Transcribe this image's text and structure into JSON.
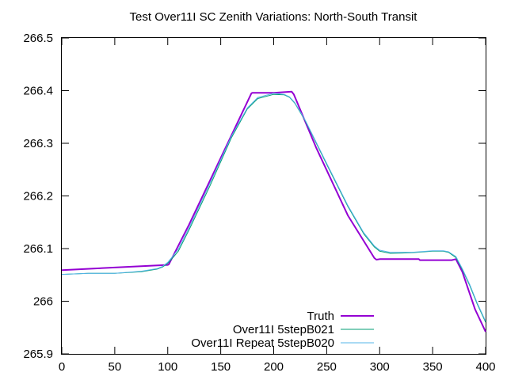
{
  "chart_data": {
    "type": "line",
    "title": "Test Over11I SC Zenith Variations: North-South Transit",
    "xlabel": "",
    "ylabel": "",
    "xlim": [
      0,
      400
    ],
    "ylim": [
      265.9,
      266.5
    ],
    "xticks": [
      0,
      50,
      100,
      150,
      200,
      250,
      300,
      350,
      400
    ],
    "xtick_labels": [
      "0",
      "50",
      "100",
      "150",
      "200",
      "250",
      "300",
      "350",
      "400"
    ],
    "yticks": [
      265.9,
      266.0,
      266.1,
      266.2,
      266.3,
      266.4,
      266.5
    ],
    "ytick_labels": [
      "265.9",
      "266",
      "266.1",
      "266.2",
      "266.3",
      "266.4",
      "266.5"
    ],
    "grid": false,
    "legend_position": "bottom-right",
    "series": [
      {
        "name": "Truth",
        "color": "#9400d3",
        "x": [
          0,
          50,
          100,
          101,
          120,
          150,
          179,
          180,
          200,
          217,
          219,
          240,
          270,
          295,
          297,
          300,
          337,
          338,
          368,
          372,
          378,
          390,
          400
        ],
        "y": [
          266.059,
          266.064,
          266.069,
          266.07,
          266.145,
          266.272,
          266.395,
          266.396,
          266.396,
          266.398,
          266.393,
          266.292,
          266.163,
          266.082,
          266.079,
          266.08,
          266.08,
          266.078,
          266.078,
          266.08,
          266.056,
          265.985,
          265.942
        ]
      },
      {
        "name": "Over11I 5stepB021",
        "color": "#009e73",
        "x": [
          0,
          25,
          50,
          75,
          90,
          95,
          100,
          105,
          110,
          120,
          140,
          160,
          175,
          185,
          200,
          210,
          215,
          220,
          230,
          250,
          270,
          285,
          295,
          300,
          310,
          330,
          350,
          360,
          365,
          372,
          378,
          385,
          392,
          400
        ],
        "y": [
          266.051,
          266.053,
          266.053,
          266.056,
          266.061,
          266.065,
          266.072,
          266.083,
          266.095,
          266.135,
          266.22,
          266.31,
          266.365,
          266.385,
          266.393,
          266.392,
          266.387,
          266.376,
          266.342,
          266.26,
          266.18,
          266.128,
          266.103,
          266.095,
          266.091,
          266.092,
          266.095,
          266.095,
          266.093,
          266.083,
          266.06,
          266.03,
          265.995,
          265.96
        ]
      },
      {
        "name": "Over11I Repeat 5stepB020",
        "color": "#56b4e9",
        "x": [
          0,
          25,
          50,
          75,
          90,
          95,
          100,
          105,
          110,
          120,
          140,
          160,
          175,
          185,
          200,
          210,
          215,
          220,
          230,
          250,
          270,
          285,
          295,
          300,
          310,
          330,
          350,
          360,
          365,
          372,
          378,
          385,
          392,
          400
        ],
        "y": [
          266.051,
          266.053,
          266.053,
          266.057,
          266.062,
          266.066,
          266.074,
          266.086,
          266.099,
          266.139,
          266.225,
          266.313,
          266.367,
          266.387,
          266.395,
          266.393,
          266.388,
          266.377,
          266.343,
          266.262,
          266.182,
          266.13,
          266.105,
          266.097,
          266.093,
          266.093,
          266.096,
          266.096,
          266.094,
          266.085,
          266.062,
          266.032,
          265.997,
          265.962
        ]
      }
    ]
  }
}
